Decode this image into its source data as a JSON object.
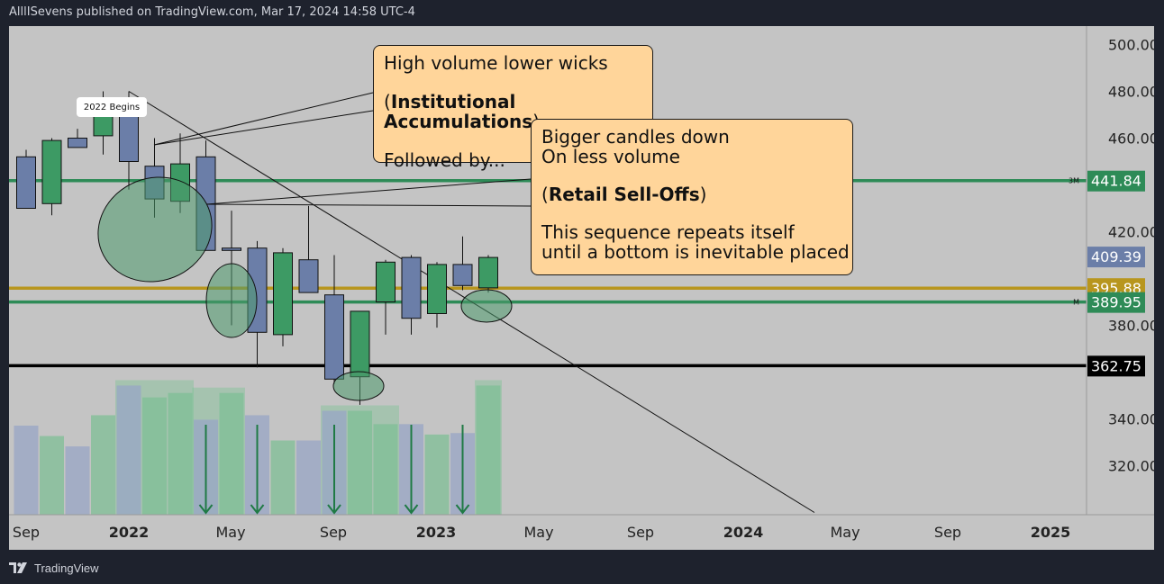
{
  "header": {
    "title": "AlllISevens published on TradingView.com, Mar 17, 2024 14:58 UTC-4"
  },
  "footer": {
    "brand": "TradingView",
    "logo_icon": "tradingview-logo-icon"
  },
  "annotations": {
    "tag_2022": "2022 Begins",
    "callout1": {
      "line1": "High volume lower wicks",
      "line2_open": "(",
      "line2_bold": "Institutional Accumulations",
      "line2_close": ")",
      "line3": "Followed by..."
    },
    "callout2": {
      "line1": "Bigger candles down",
      "line2": "On less volume",
      "line3_open": "(",
      "line3_bold": "Retail Sell-Offs",
      "line3_close": ")",
      "line4": "This sequence repeats itself",
      "line5": "until a bottom is inevitable placed"
    }
  },
  "colors": {
    "bull": "#3d9a64",
    "bear": "#6b7ea8",
    "green_line": "#2e8b57",
    "gold_line": "#b8961e",
    "black_line": "#000000",
    "callout_bg": "#ffd59a"
  },
  "chart_data": {
    "type": "candlestick",
    "y_axis": {
      "min": 300,
      "max": 510,
      "ticks": [
        320,
        340,
        380,
        420,
        460,
        480,
        500
      ]
    },
    "x_axis_labels": [
      "Sep",
      "2022",
      "May",
      "Sep",
      "2023",
      "May",
      "Sep",
      "2024",
      "May",
      "Sep",
      "2025"
    ],
    "x_axis_bold": [
      false,
      true,
      false,
      false,
      true,
      false,
      false,
      true,
      false,
      false,
      true
    ],
    "candles": [
      {
        "o": 430,
        "h": 455,
        "l": 430,
        "c": 452,
        "dir": "bear"
      },
      {
        "o": 432,
        "h": 460,
        "l": 427,
        "c": 459,
        "dir": "bull"
      },
      {
        "o": 456,
        "h": 464,
        "l": 456,
        "c": 460,
        "dir": "bear"
      },
      {
        "o": 461,
        "h": 480,
        "l": 453,
        "c": 474,
        "dir": "bull"
      },
      {
        "o": 476,
        "h": 480,
        "l": 438,
        "c": 450,
        "dir": "bear"
      },
      {
        "o": 448,
        "h": 460,
        "l": 426,
        "c": 434,
        "dir": "bear"
      },
      {
        "o": 433,
        "h": 462,
        "l": 428,
        "c": 449,
        "dir": "bull"
      },
      {
        "o": 452,
        "h": 459,
        "l": 413,
        "c": 412,
        "dir": "bear"
      },
      {
        "o": 412,
        "h": 429,
        "l": 380,
        "c": 413,
        "dir": "bear"
      },
      {
        "o": 413,
        "h": 416,
        "l": 362,
        "c": 377,
        "dir": "bear"
      },
      {
        "o": 376,
        "h": 413,
        "l": 371,
        "c": 411,
        "dir": "bull"
      },
      {
        "o": 408,
        "h": 431,
        "l": 394,
        "c": 394,
        "dir": "bear"
      },
      {
        "o": 393,
        "h": 410,
        "l": 355,
        "c": 357,
        "dir": "bear"
      },
      {
        "o": 358,
        "h": 386,
        "l": 346,
        "c": 386,
        "dir": "bull"
      },
      {
        "o": 390,
        "h": 408,
        "l": 376,
        "c": 407,
        "dir": "bull"
      },
      {
        "o": 383,
        "h": 410,
        "l": 376,
        "c": 409,
        "dir": "bear"
      },
      {
        "o": 385,
        "h": 407,
        "l": 379,
        "c": 406,
        "dir": "bull"
      },
      {
        "o": 397,
        "h": 418,
        "l": 395,
        "c": 406,
        "dir": "bear"
      },
      {
        "o": 396,
        "h": 410,
        "l": 394,
        "c": 409,
        "dir": "bull"
      }
    ],
    "volume": [
      {
        "v": 0.6,
        "dir": "bear"
      },
      {
        "v": 0.53,
        "dir": "bull"
      },
      {
        "v": 0.46,
        "dir": "bear"
      },
      {
        "v": 0.67,
        "dir": "bull"
      },
      {
        "v": 0.87,
        "dir": "bear"
      },
      {
        "v": 0.79,
        "dir": "bull"
      },
      {
        "v": 0.82,
        "dir": "bull"
      },
      {
        "v": 0.64,
        "dir": "bear"
      },
      {
        "v": 0.82,
        "dir": "bull"
      },
      {
        "v": 0.67,
        "dir": "bear"
      },
      {
        "v": 0.5,
        "dir": "bull"
      },
      {
        "v": 0.5,
        "dir": "bear"
      },
      {
        "v": 0.7,
        "dir": "bear"
      },
      {
        "v": 0.7,
        "dir": "bull"
      },
      {
        "v": 0.61,
        "dir": "bull"
      },
      {
        "v": 0.61,
        "dir": "bear"
      },
      {
        "v": 0.54,
        "dir": "bull"
      },
      {
        "v": 0.55,
        "dir": "bear"
      },
      {
        "v": 0.87,
        "dir": "bull"
      }
    ],
    "volume_highlight_zones": [
      [
        4,
        6
      ],
      [
        7,
        8
      ],
      [
        12,
        14
      ],
      [
        18,
        18
      ]
    ],
    "volume_arrows": [
      7,
      9,
      12,
      15,
      17
    ],
    "horizontal_lines": [
      {
        "price": 441.84,
        "label": "441.84",
        "tag": "3M",
        "color": "#2e8b57",
        "label_bg": "#2e8b57"
      },
      {
        "price": 395.88,
        "label": "395.88",
        "tag": "",
        "color": "#b8961e",
        "label_bg": "#b8961e"
      },
      {
        "price": 389.95,
        "label": "389.95",
        "tag": "M",
        "color": "#2e8b57",
        "label_bg": "#2e8b57"
      },
      {
        "price": 362.75,
        "label": "362.75",
        "tag": "",
        "color": "#000000",
        "label_bg": "#000000"
      }
    ],
    "last_price": {
      "price": 409.39,
      "label": "409.39",
      "bg": "#6b7ea8"
    },
    "trendline": {
      "from": {
        "index": 4,
        "price": 480
      },
      "to": {
        "index": 30.7,
        "price": 300
      }
    }
  }
}
